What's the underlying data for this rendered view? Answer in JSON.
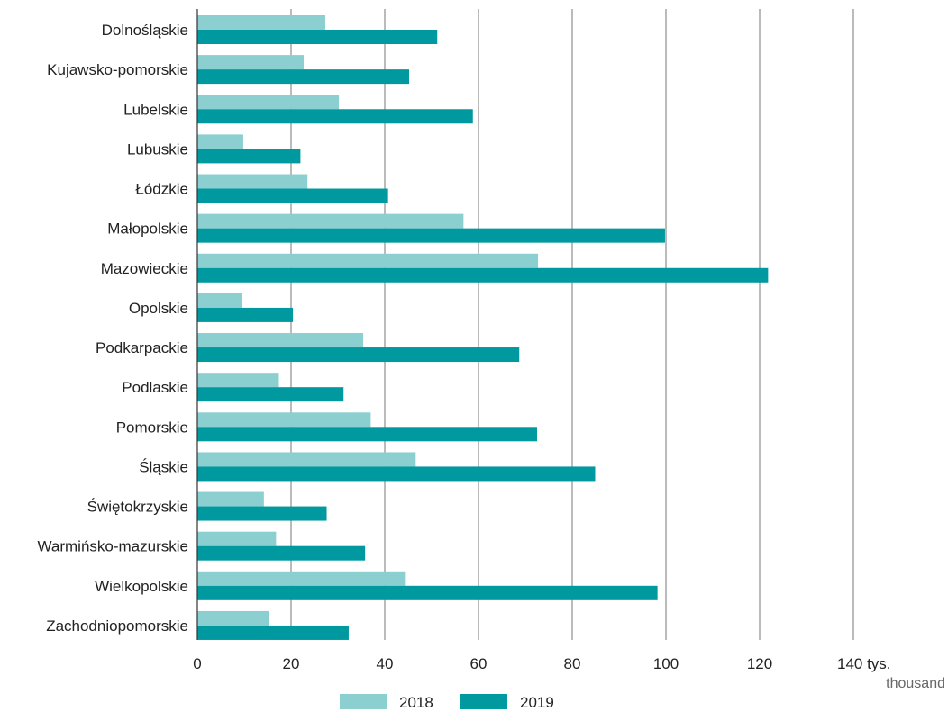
{
  "chart_data": {
    "type": "bar",
    "orientation": "horizontal",
    "categories": [
      "Dolnośląskie",
      "Kujawsko-pomorskie",
      "Lubelskie",
      "Lubuskie",
      "Łódzkie",
      "Małopolskie",
      "Mazowieckie",
      "Opolskie",
      "Podkarpackie",
      "Podlaskie",
      "Pomorskie",
      "Śląskie",
      "Świętokrzyskie",
      "Warmińsko-mazurskie",
      "Wielkopolskie",
      "Zachodniopomorskie"
    ],
    "series": [
      {
        "name": "2018",
        "color": "#8ccfd0",
        "values": [
          27.3,
          22.7,
          30.2,
          9.8,
          23.5,
          56.8,
          72.7,
          9.5,
          35.4,
          17.4,
          37.0,
          46.6,
          14.2,
          16.8,
          44.3,
          15.3
        ]
      },
      {
        "name": "2019",
        "color": "#00999f",
        "values": [
          51.2,
          45.2,
          58.8,
          22.0,
          40.7,
          99.8,
          121.8,
          20.4,
          68.7,
          31.2,
          72.5,
          84.9,
          27.6,
          35.8,
          98.2,
          32.3
        ]
      }
    ],
    "x_ticks": [
      "0",
      "20",
      "40",
      "60",
      "80",
      "100",
      "120",
      "140"
    ],
    "xlim": [
      0,
      140
    ],
    "unit_label": "tys.",
    "unit_sublabel": "thousand",
    "grid": true,
    "legend_position": "bottom-center"
  }
}
